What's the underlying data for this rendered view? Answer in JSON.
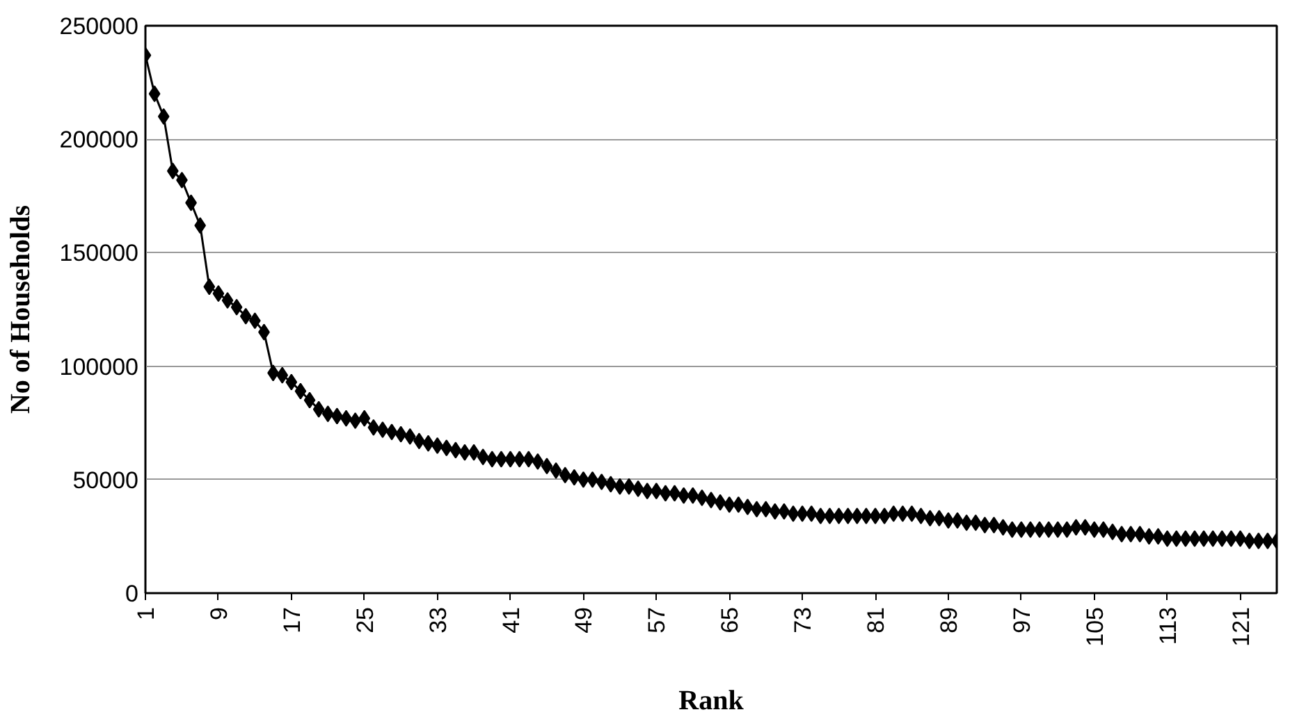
{
  "chart_data": {
    "type": "line",
    "xlabel": "Rank",
    "ylabel": "No of Households",
    "x": [
      1,
      2,
      3,
      4,
      5,
      6,
      7,
      8,
      9,
      10,
      11,
      12,
      13,
      14,
      15,
      16,
      17,
      18,
      19,
      20,
      21,
      22,
      23,
      24,
      25,
      26,
      27,
      28,
      29,
      30,
      31,
      32,
      33,
      34,
      35,
      36,
      37,
      38,
      39,
      40,
      41,
      42,
      43,
      44,
      45,
      46,
      47,
      48,
      49,
      50,
      51,
      52,
      53,
      54,
      55,
      56,
      57,
      58,
      59,
      60,
      61,
      62,
      63,
      64,
      65,
      66,
      67,
      68,
      69,
      70,
      71,
      72,
      73,
      74,
      75,
      76,
      77,
      78,
      79,
      80,
      81,
      82,
      83,
      84,
      85,
      86,
      87,
      88,
      89,
      90,
      91,
      92,
      93,
      94,
      95,
      96,
      97,
      98,
      99,
      100,
      101,
      102,
      103,
      104,
      105,
      106,
      107,
      108,
      109,
      110,
      111,
      112,
      113,
      114,
      115,
      116,
      117,
      118,
      119,
      120,
      121,
      122,
      123,
      124,
      125
    ],
    "series": [
      {
        "color": "#000000",
        "values": [
          237000,
          220000,
          210000,
          186000,
          182000,
          172000,
          162000,
          135000,
          132000,
          129000,
          126000,
          122000,
          120000,
          115000,
          97000,
          96000,
          93000,
          89000,
          85000,
          81000,
          79000,
          78000,
          77000,
          76000,
          77000,
          73000,
          72000,
          71000,
          70000,
          69000,
          67000,
          66000,
          65000,
          64000,
          63000,
          62000,
          62000,
          60000,
          59000,
          59000,
          59000,
          59000,
          59000,
          58000,
          56000,
          54000,
          52000,
          51000,
          50000,
          50000,
          49000,
          48000,
          47000,
          47000,
          46000,
          45000,
          45000,
          44000,
          44000,
          43000,
          43000,
          42000,
          41000,
          40000,
          39000,
          39000,
          38000,
          37000,
          37000,
          36000,
          36000,
          35000,
          35000,
          35000,
          34000,
          34000,
          34000,
          34000,
          34000,
          34000,
          34000,
          34000,
          35000,
          35000,
          35000,
          34000,
          33000,
          33000,
          32000,
          32000,
          31000,
          31000,
          30000,
          30000,
          29000,
          28000,
          28000,
          28000,
          28000,
          28000,
          28000,
          28000,
          29000,
          29000,
          28000,
          28000,
          27000,
          26000,
          26000,
          26000,
          25000,
          25000,
          24000,
          24000,
          24000,
          24000,
          24000,
          24000,
          24000,
          24000,
          24000,
          23000,
          23000,
          23000,
          23000
        ]
      }
    ],
    "xlim": [
      1,
      125
    ],
    "xticks": [
      1,
      9,
      17,
      25,
      33,
      41,
      49,
      57,
      65,
      73,
      81,
      89,
      97,
      105,
      113,
      121
    ],
    "ylim": [
      0,
      250000
    ],
    "yticks": [
      0,
      50000,
      100000,
      150000,
      200000,
      250000
    ],
    "grid": "y",
    "marker": "diamond",
    "line_style": "solid"
  }
}
